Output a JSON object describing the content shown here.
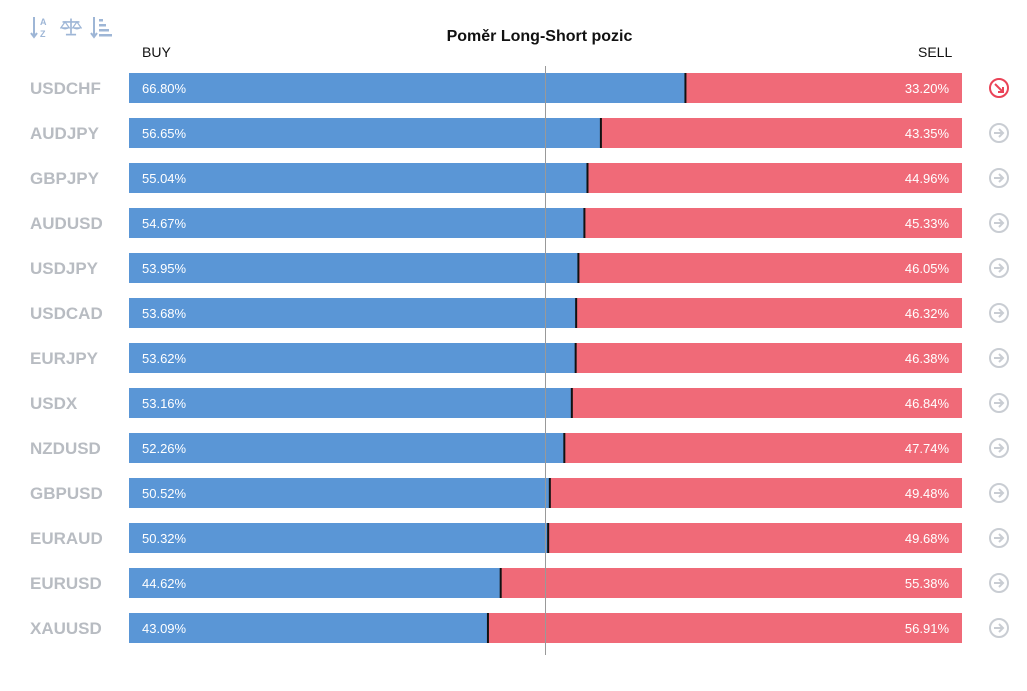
{
  "title": "Poměr Long-Short pozic",
  "buy_label": "BUY",
  "sell_label": "SELL",
  "toolbar": {
    "sort_alpha_icon": "sort-alpha-icon",
    "balance_icon": "balance-scale-icon",
    "sort_amount_icon": "sort-amount-icon",
    "icon_color": "#9eb6d6"
  },
  "colors": {
    "buy": "#5a96d6",
    "sell": "#f06a78",
    "divider": "#111111",
    "center_line": "#999999",
    "arrow_active": "#ea4357",
    "arrow_inactive": "#c9cdd3"
  },
  "chart_data": {
    "type": "bar",
    "orientation": "horizontal-stacked",
    "title": "Poměr Long-Short pozic",
    "categories": [
      "USDCHF",
      "AUDJPY",
      "GBPJPY",
      "AUDUSD",
      "USDJPY",
      "USDCAD",
      "EURJPY",
      "USDX",
      "NZDUSD",
      "GBPUSD",
      "EURAUD",
      "EURUSD",
      "XAUUSD"
    ],
    "series": [
      {
        "name": "BUY",
        "values": [
          66.8,
          56.65,
          55.04,
          54.67,
          53.95,
          53.68,
          53.62,
          53.16,
          52.26,
          50.52,
          50.32,
          44.62,
          43.09
        ]
      },
      {
        "name": "SELL",
        "values": [
          33.2,
          43.35,
          44.96,
          45.33,
          46.05,
          46.32,
          46.38,
          46.84,
          47.74,
          49.48,
          49.68,
          55.38,
          56.91
        ]
      }
    ],
    "value_labels": {
      "buy": [
        "66.80%",
        "56.65%",
        "55.04%",
        "54.67%",
        "53.95%",
        "53.68%",
        "53.62%",
        "53.16%",
        "52.26%",
        "50.52%",
        "50.32%",
        "44.62%",
        "43.09%"
      ],
      "sell": [
        "33.20%",
        "43.35%",
        "44.96%",
        "45.33%",
        "46.05%",
        "46.32%",
        "46.38%",
        "46.84%",
        "47.74%",
        "49.48%",
        "49.68%",
        "55.38%",
        "56.91%"
      ]
    },
    "xlim": [
      0,
      100
    ],
    "reference_line": 50,
    "row_icons": [
      "arrow-down-right-icon",
      "arrow-right-icon",
      "arrow-right-icon",
      "arrow-right-icon",
      "arrow-right-icon",
      "arrow-right-icon",
      "arrow-right-icon",
      "arrow-right-icon",
      "arrow-right-icon",
      "arrow-right-icon",
      "arrow-right-icon",
      "arrow-right-icon",
      "arrow-right-icon"
    ]
  }
}
